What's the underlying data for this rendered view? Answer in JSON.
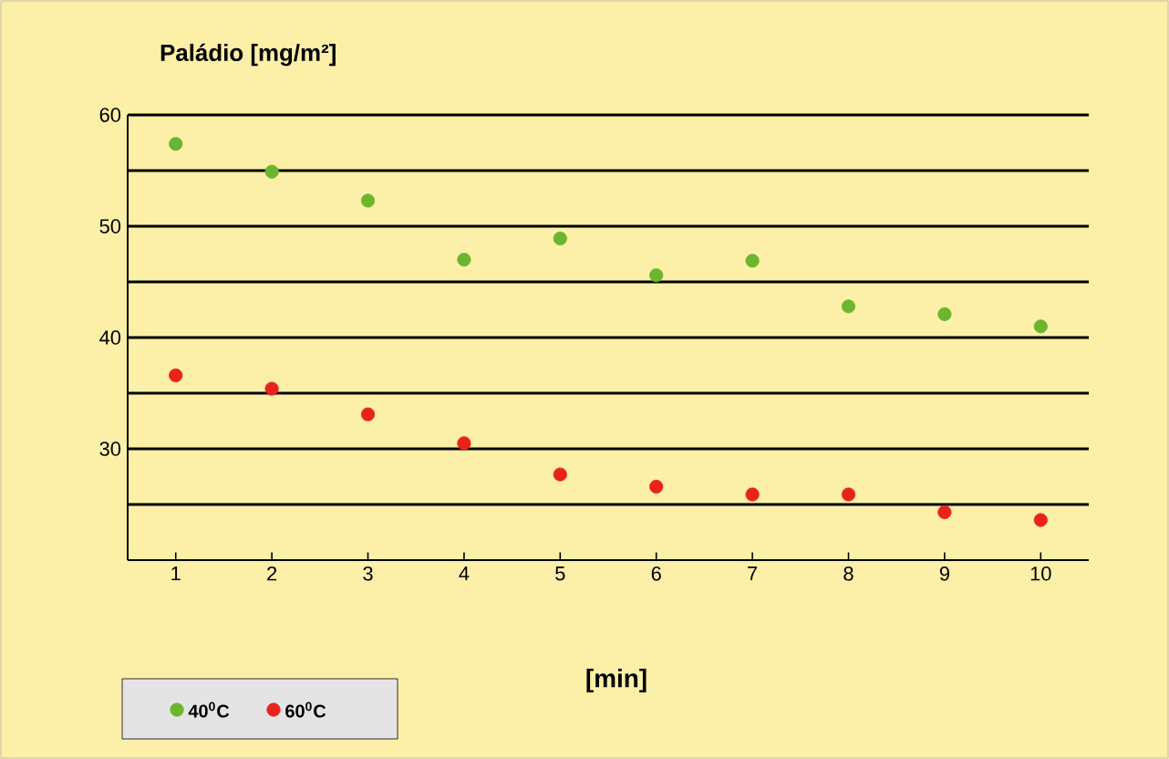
{
  "chart_data": {
    "type": "scatter",
    "title": "Paládio [mg/m²]",
    "xlabel": "[min]",
    "x": [
      1,
      2,
      3,
      4,
      5,
      6,
      7,
      8,
      9,
      10
    ],
    "series": [
      {
        "name": "40$^{0}$C",
        "color": "#6cb52d",
        "values": [
          57.4,
          54.9,
          52.3,
          47.0,
          48.9,
          45.6,
          46.9,
          42.8,
          42.1,
          41.0
        ]
      },
      {
        "name": "60$^{0}$C",
        "color": "#e8231f",
        "values": [
          36.6,
          35.4,
          33.1,
          30.5,
          27.7,
          26.6,
          25.9,
          25.9,
          24.3,
          23.6
        ]
      }
    ],
    "xlim": [
      0.5,
      10.5
    ],
    "xticks": [
      1,
      2,
      3,
      4,
      5,
      6,
      7,
      8,
      9,
      10
    ],
    "ylim": [
      20,
      60
    ],
    "yticks": [
      {
        "value": 25,
        "label": null
      },
      30,
      {
        "value": 35,
        "label": null
      },
      40,
      {
        "value": 45,
        "label": null
      },
      50,
      {
        "value": 55,
        "label": null
      },
      60
    ],
    "grid": "y",
    "legend": "bottom left",
    "marker": "circle"
  }
}
